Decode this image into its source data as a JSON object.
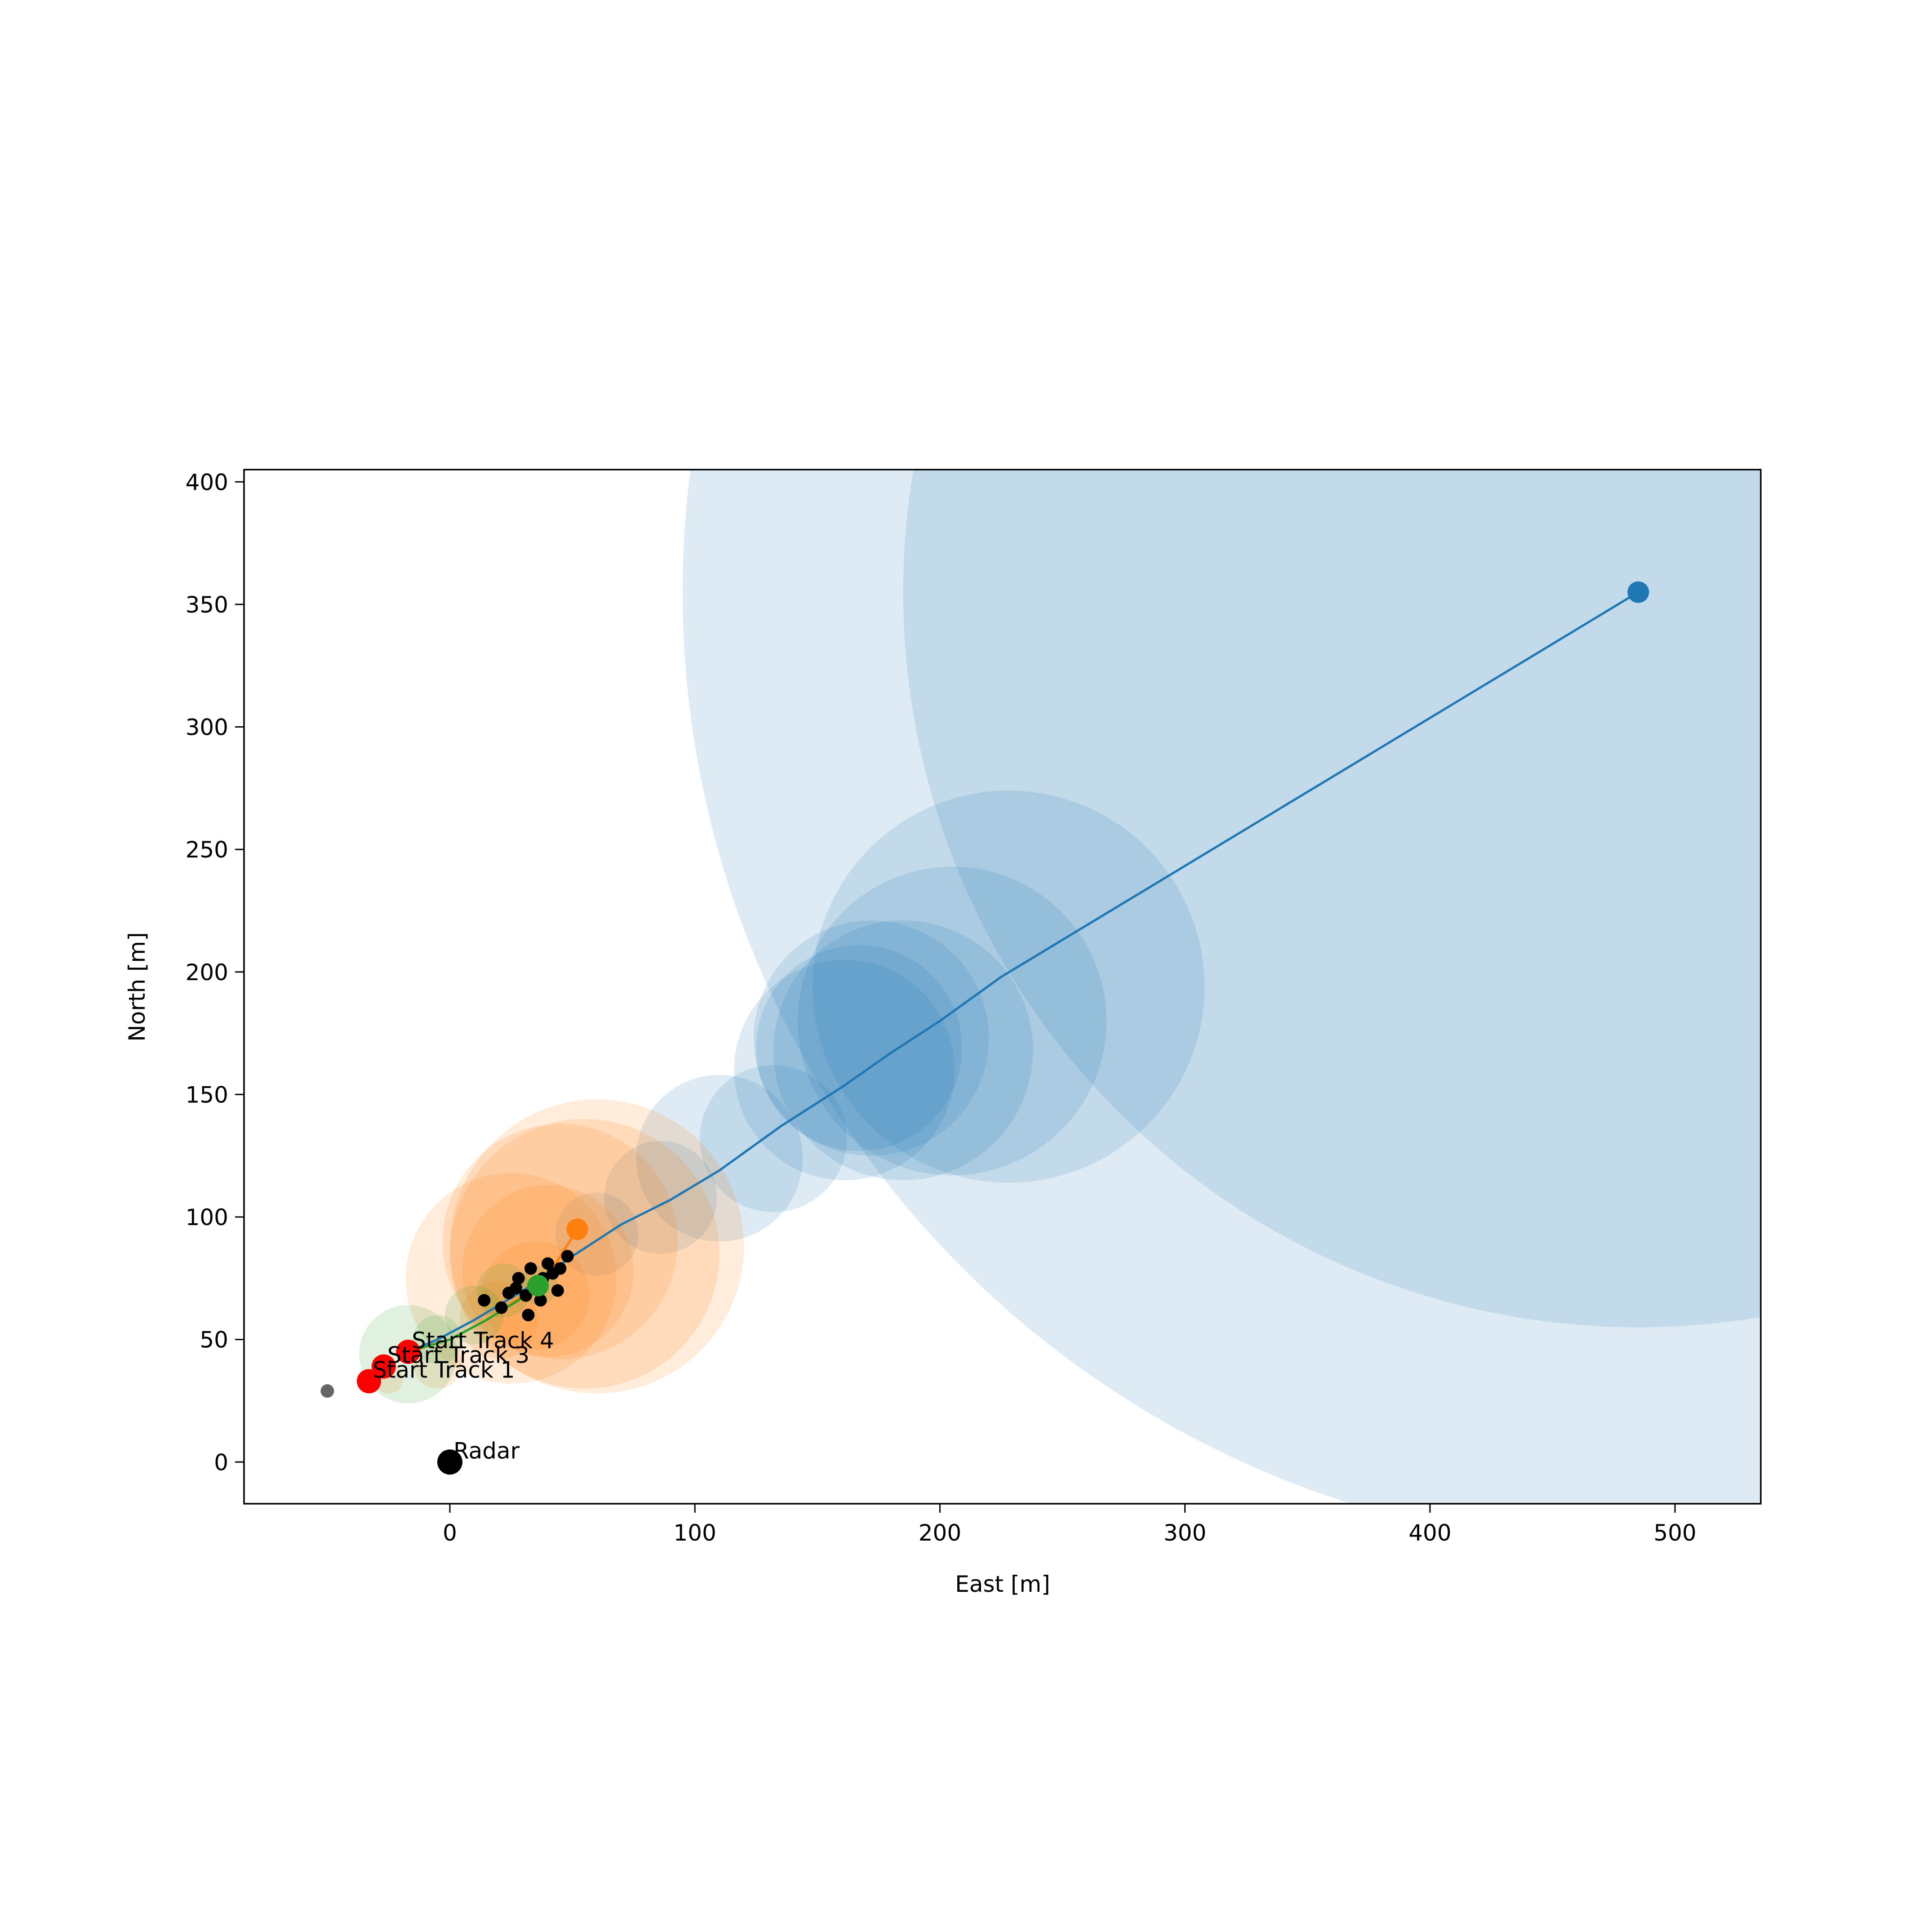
{
  "chart_data": {
    "type": "scatter",
    "title": "",
    "xlabel": "East [m]",
    "ylabel": "North [m]",
    "xlim": [
      -84,
      535
    ],
    "ylim": [
      -17,
      405
    ],
    "xticks": [
      0,
      100,
      200,
      300,
      400,
      500
    ],
    "yticks": [
      0,
      50,
      100,
      150,
      200,
      250,
      300,
      350,
      400
    ],
    "grid": false,
    "colors": {
      "track1": "#1f77b4",
      "track2": "#ff7f0e",
      "track3": "#2ca02c",
      "start": "#ff0000",
      "detection": "#000000",
      "clutter": "#666666",
      "radar": "#000000"
    },
    "annotations": [
      {
        "text": "Radar",
        "x": 0,
        "y": 0
      },
      {
        "text": "Start Track 1",
        "x": -33,
        "y": 33
      },
      {
        "text": "Start Track 3",
        "x": -27,
        "y": 39
      },
      {
        "text": "Start Track 4",
        "x": -17,
        "y": 45
      }
    ],
    "radar": {
      "x": 0,
      "y": 0
    },
    "start_points": [
      {
        "x": -33,
        "y": 33
      },
      {
        "x": -27,
        "y": 39
      },
      {
        "x": -17,
        "y": 45
      }
    ],
    "clutter_points": [
      {
        "x": -50,
        "y": 29
      }
    ],
    "detections": [
      {
        "x": 14,
        "y": 66
      },
      {
        "x": 21,
        "y": 63
      },
      {
        "x": 24,
        "y": 69
      },
      {
        "x": 27,
        "y": 71
      },
      {
        "x": 31,
        "y": 68
      },
      {
        "x": 33,
        "y": 79
      },
      {
        "x": 35,
        "y": 73
      },
      {
        "x": 37,
        "y": 66
      },
      {
        "x": 38,
        "y": 75
      },
      {
        "x": 40,
        "y": 81
      },
      {
        "x": 42,
        "y": 77
      },
      {
        "x": 44,
        "y": 70
      },
      {
        "x": 45,
        "y": 79
      },
      {
        "x": 48,
        "y": 84
      },
      {
        "x": 32,
        "y": 60
      },
      {
        "x": 28,
        "y": 75
      }
    ],
    "series": [
      {
        "x": [
          -17,
          -5,
          10,
          30,
          50,
          70,
          90,
          110,
          135,
          160,
          180,
          200,
          225,
          485
        ],
        "y": [
          45,
          50,
          58,
          70,
          84,
          97,
          107,
          119,
          137,
          153,
          167,
          180,
          198,
          355
        ],
        "uncertainty_circles": [
          {
            "x": 60,
            "y": 93,
            "r": 17
          },
          {
            "x": 86,
            "y": 108,
            "r": 23
          },
          {
            "x": 110,
            "y": 124,
            "r": 34
          },
          {
            "x": 132,
            "y": 132,
            "r": 30
          },
          {
            "x": 161,
            "y": 160,
            "r": 45
          },
          {
            "x": 167,
            "y": 169,
            "r": 42
          },
          {
            "x": 172,
            "y": 173,
            "r": 48
          },
          {
            "x": 185,
            "y": 168,
            "r": 53
          },
          {
            "x": 205,
            "y": 180,
            "r": 63
          },
          {
            "x": 228,
            "y": 194,
            "r": 80
          },
          {
            "x": 485,
            "y": 355,
            "r": 300
          },
          {
            "x": 485,
            "y": 355,
            "r": 390
          }
        ]
      },
      {
        "x": [
          -17,
          0,
          15,
          30,
          40,
          52
        ],
        "y": [
          45,
          50,
          58,
          68,
          76,
          95
        ],
        "uncertainty_circles": [
          {
            "x": 60,
            "y": 88,
            "r": 60
          },
          {
            "x": 55,
            "y": 85,
            "r": 55
          },
          {
            "x": 45,
            "y": 90,
            "r": 48
          },
          {
            "x": 25,
            "y": 75,
            "r": 43
          },
          {
            "x": 40,
            "y": 78,
            "r": 35
          },
          {
            "x": 35,
            "y": 68,
            "r": 22
          },
          {
            "x": 20,
            "y": 58,
            "r": 16
          },
          {
            "x": -5,
            "y": 40,
            "r": 10
          },
          {
            "x": -25,
            "y": 34,
            "r": 6
          }
        ]
      },
      {
        "x": [
          -17,
          0,
          15,
          28,
          36
        ],
        "y": [
          45,
          50,
          58,
          66,
          72
        ],
        "uncertainty_circles": [
          {
            "x": -17,
            "y": 44,
            "r": 20
          },
          {
            "x": -5,
            "y": 50,
            "r": 10
          },
          {
            "x": 10,
            "y": 60,
            "r": 12
          },
          {
            "x": 22,
            "y": 70,
            "r": 11
          },
          {
            "x": 36,
            "y": 72,
            "r": 8
          }
        ]
      }
    ]
  }
}
